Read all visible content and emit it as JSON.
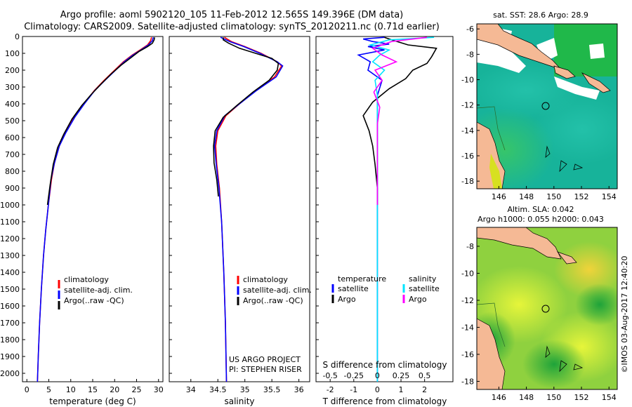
{
  "title": {
    "line1": "Argo profile: aoml 5902120_105 11-Feb-2012 12.565S 149.396E (DM data)",
    "line2": "Climatology: CARS2009. Satellite-adjusted climatology: synTS_20120211.nc (0.71d earlier)"
  },
  "colors": {
    "climatology": "#ff0000",
    "satellite": "#0000ff",
    "argo": "#000000",
    "sat_salinity": "#00e5ff",
    "argo_salinity": "#ff00ff",
    "land": "#f5b995"
  },
  "chart_data": [
    {
      "type": "line",
      "id": "temperature",
      "xlabel": "temperature (deg C)",
      "xlim": [
        -1,
        31
      ],
      "xticks": [
        0,
        5,
        10,
        15,
        20,
        25,
        30
      ],
      "ylim": [
        0,
        2050
      ],
      "yticks": [
        0,
        100,
        200,
        300,
        400,
        500,
        600,
        700,
        800,
        900,
        1000,
        1100,
        1200,
        1300,
        1400,
        1500,
        1600,
        1700,
        1800,
        1900,
        2000
      ],
      "legend": [
        "climatology",
        "satellite-adj. clim.",
        "Argo(..raw -QC)"
      ],
      "series": [
        {
          "name": "climatology",
          "color": "#ff0000",
          "points": [
            [
              28.4,
              5
            ],
            [
              28.2,
              25
            ],
            [
              27.5,
              50
            ],
            [
              25.8,
              80
            ],
            [
              24,
              110
            ],
            [
              22,
              150
            ],
            [
              20,
              200
            ],
            [
              17.6,
              260
            ],
            [
              15.4,
              320
            ],
            [
              13,
              400
            ],
            [
              10.8,
              480
            ],
            [
              8.8,
              570
            ],
            [
              7.4,
              650
            ],
            [
              6.3,
              750
            ],
            [
              5.6,
              850
            ],
            [
              4.9,
              1000
            ],
            [
              4.3,
              1150
            ],
            [
              3.8,
              1300
            ],
            [
              3.3,
              1500
            ],
            [
              2.9,
              1700
            ],
            [
              2.6,
              1900
            ],
            [
              2.4,
              2050
            ]
          ]
        },
        {
          "name": "satellite-adj. clim.",
          "color": "#0000ff",
          "points": [
            [
              28.8,
              5
            ],
            [
              28.6,
              25
            ],
            [
              27.7,
              50
            ],
            [
              26,
              80
            ],
            [
              24.2,
              110
            ],
            [
              22.2,
              150
            ],
            [
              20.2,
              200
            ],
            [
              17.8,
              260
            ],
            [
              15.5,
              320
            ],
            [
              13.1,
              400
            ],
            [
              10.9,
              480
            ],
            [
              8.9,
              570
            ],
            [
              7.4,
              650
            ],
            [
              6.3,
              750
            ],
            [
              5.5,
              850
            ],
            [
              4.9,
              1000
            ],
            [
              4.3,
              1150
            ],
            [
              3.8,
              1300
            ],
            [
              3.3,
              1500
            ],
            [
              2.9,
              1700
            ],
            [
              2.6,
              1900
            ],
            [
              2.4,
              2050
            ]
          ]
        },
        {
          "name": "Argo(..raw -QC)",
          "color": "#000000",
          "points": [
            [
              29.1,
              5
            ],
            [
              29,
              20
            ],
            [
              28.6,
              40
            ],
            [
              27.5,
              60
            ],
            [
              25.5,
              90
            ],
            [
              23.5,
              130
            ],
            [
              21.5,
              170
            ],
            [
              19.3,
              220
            ],
            [
              17,
              280
            ],
            [
              14.8,
              340
            ],
            [
              12.5,
              410
            ],
            [
              10.3,
              490
            ],
            [
              8.4,
              580
            ],
            [
              7,
              660
            ],
            [
              6,
              760
            ],
            [
              5.3,
              880
            ],
            [
              4.7,
              1000
            ]
          ]
        }
      ]
    },
    {
      "type": "line",
      "id": "salinity",
      "xlabel": "salinity",
      "xlim": [
        33.6,
        36.2
      ],
      "xticks": [
        34,
        34.5,
        35,
        35.5,
        36
      ],
      "ylim": [
        0,
        2050
      ],
      "legend": [
        "climatology",
        "satellite-adj. clim.",
        "Argo(..raw -QC)"
      ],
      "annotation": [
        "US ARGO PROJECT",
        "PI: STEPHEN RISER"
      ],
      "series": [
        {
          "name": "climatology",
          "color": "#ff0000",
          "points": [
            [
              34.62,
              5
            ],
            [
              34.75,
              30
            ],
            [
              35,
              60
            ],
            [
              35.3,
              100
            ],
            [
              35.6,
              150
            ],
            [
              35.68,
              175
            ],
            [
              35.55,
              240
            ],
            [
              35.2,
              320
            ],
            [
              34.9,
              400
            ],
            [
              34.65,
              470
            ],
            [
              34.5,
              560
            ],
            [
              34.46,
              650
            ],
            [
              34.48,
              760
            ],
            [
              34.53,
              900
            ],
            [
              34.57,
              1100
            ],
            [
              34.61,
              1400
            ],
            [
              34.64,
              1700
            ],
            [
              34.66,
              2050
            ]
          ]
        },
        {
          "name": "satellite-adj. clim.",
          "color": "#0000ff",
          "points": [
            [
              34.55,
              5
            ],
            [
              34.72,
              30
            ],
            [
              34.98,
              60
            ],
            [
              35.28,
              100
            ],
            [
              35.6,
              150
            ],
            [
              35.7,
              175
            ],
            [
              35.58,
              240
            ],
            [
              35.22,
              320
            ],
            [
              34.9,
              400
            ],
            [
              34.63,
              470
            ],
            [
              34.48,
              560
            ],
            [
              34.44,
              650
            ],
            [
              34.47,
              760
            ],
            [
              34.52,
              900
            ],
            [
              34.57,
              1100
            ],
            [
              34.61,
              1400
            ],
            [
              34.64,
              1700
            ],
            [
              34.66,
              2050
            ]
          ]
        },
        {
          "name": "Argo(..raw -QC)",
          "color": "#000000",
          "points": [
            [
              34.6,
              5
            ],
            [
              34.6,
              20
            ],
            [
              34.7,
              40
            ],
            [
              34.9,
              70
            ],
            [
              35.2,
              100
            ],
            [
              35.5,
              130
            ],
            [
              35.62,
              160
            ],
            [
              35.6,
              200
            ],
            [
              35.45,
              260
            ],
            [
              35.15,
              330
            ],
            [
              34.85,
              410
            ],
            [
              34.6,
              480
            ],
            [
              34.45,
              560
            ],
            [
              34.42,
              650
            ],
            [
              34.43,
              750
            ],
            [
              34.48,
              850
            ],
            [
              34.51,
              950
            ]
          ]
        }
      ]
    },
    {
      "type": "line",
      "id": "difference",
      "xlabel": "T difference from climatology",
      "x2label": "S difference from climatology",
      "xlim": [
        -2.6,
        3.2
      ],
      "xticks": [
        -2,
        -1,
        0,
        1,
        2
      ],
      "s_ticks": [
        "-0.5",
        "-0.25",
        "0",
        "0.25",
        "0.5"
      ],
      "ylim": [
        0,
        2050
      ],
      "legend_temperature": {
        "title": "temperature",
        "items": [
          "satellite",
          "Argo"
        ]
      },
      "legend_salinity": {
        "title": "salinity",
        "items": [
          "satellite",
          "Argo"
        ]
      },
      "series": [
        {
          "name": "T satellite",
          "color": "#0000ff",
          "points": [
            [
              0.3,
              5
            ],
            [
              -0.6,
              15
            ],
            [
              -0.2,
              30
            ],
            [
              0.5,
              45
            ],
            [
              -0.4,
              60
            ],
            [
              0.3,
              80
            ],
            [
              -0.8,
              110
            ],
            [
              -0.3,
              150
            ],
            [
              -0.4,
              200
            ],
            [
              0.2,
              260
            ],
            [
              0,
              350
            ],
            [
              0,
              500
            ],
            [
              0,
              700
            ],
            [
              0,
              1000
            ],
            [
              0,
              1500
            ],
            [
              0,
              2050
            ]
          ]
        },
        {
          "name": "T Argo",
          "color": "#000000",
          "points": [
            [
              0.3,
              5
            ],
            [
              0.6,
              20
            ],
            [
              1.3,
              50
            ],
            [
              2.5,
              70
            ],
            [
              2.3,
              120
            ],
            [
              2.1,
              160
            ],
            [
              1.5,
              200
            ],
            [
              1.2,
              250
            ],
            [
              0.5,
              310
            ],
            [
              -0.2,
              390
            ],
            [
              -0.6,
              470
            ],
            [
              -0.35,
              560
            ],
            [
              -0.2,
              650
            ],
            [
              -0.1,
              760
            ],
            [
              0,
              900
            ],
            [
              0,
              1000
            ]
          ]
        },
        {
          "name": "S satellite",
          "color": "#00e5ff",
          "points": [
            [
              2.4,
              5
            ],
            [
              0.5,
              20
            ],
            [
              -0.3,
              50
            ],
            [
              0.5,
              80
            ],
            [
              0.1,
              110
            ],
            [
              -0.2,
              150
            ],
            [
              0.3,
              200
            ],
            [
              -0.1,
              260
            ],
            [
              0,
              350
            ],
            [
              0,
              500
            ],
            [
              0,
              2050
            ]
          ]
        },
        {
          "name": "S Argo",
          "color": "#ff00ff",
          "points": [
            [
              2.1,
              5
            ],
            [
              0.6,
              30
            ],
            [
              -0.2,
              70
            ],
            [
              0.2,
              110
            ],
            [
              0.8,
              150
            ],
            [
              -0.1,
              200
            ],
            [
              0.2,
              260
            ],
            [
              -0.15,
              330
            ],
            [
              0.1,
              420
            ],
            [
              0,
              520
            ],
            [
              0,
              700
            ],
            [
              0,
              1000
            ]
          ]
        }
      ]
    },
    {
      "type": "heatmap",
      "id": "sst-map",
      "title": "sat. SST: 28.6 Argo: 28.9",
      "xticks": [
        "146",
        "148",
        "150",
        "152",
        "154"
      ],
      "yticks": [
        "-6",
        "-8",
        "-10",
        "-12",
        "-14",
        "-16",
        "-18"
      ],
      "xlim": [
        144.4,
        154.6
      ],
      "ylim": [
        -18.6,
        -5.6
      ],
      "float_position": [
        149.4,
        -12.6
      ]
    },
    {
      "type": "heatmap",
      "id": "sla-map",
      "title": "Altim. SLA: 0.042",
      "subtitle": "Argo h1000: 0.055 h2000: 0.043",
      "xticks": [
        "146",
        "148",
        "150",
        "152",
        "154"
      ],
      "yticks": [
        "-8",
        "-10",
        "-12",
        "-14",
        "-16",
        "-18"
      ],
      "xlim": [
        144.4,
        154.6
      ],
      "ylim": [
        -18.6,
        -6.6
      ],
      "float_position": [
        149.4,
        -12.6
      ]
    }
  ],
  "footer": "©IMOS 03-Aug-2017 12:40:20"
}
